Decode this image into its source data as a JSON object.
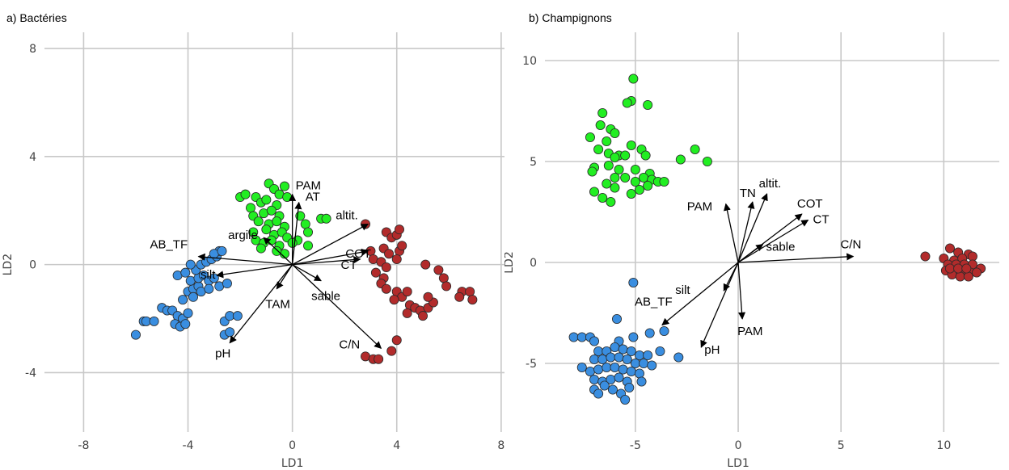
{
  "chart_data": [
    {
      "type": "scatter",
      "title": "a) Bactéries",
      "xlabel": "LD1",
      "ylabel": "LD2",
      "xlim": [
        -9.5,
        8.5
      ],
      "ylim": [
        -6.2,
        8.6
      ],
      "xticks": [
        -8,
        -4,
        0,
        4,
        8
      ],
      "yticks": [
        -4,
        0,
        4,
        8
      ],
      "xtick_labels": [
        "-8",
        "-4",
        "0",
        "4",
        "8"
      ],
      "ytick_labels": [
        "-4",
        "0",
        "4",
        "8"
      ],
      "grid": true,
      "series": [
        {
          "color": "#22ee22",
          "points": [
            [
              -2.0,
              2.5
            ],
            [
              -1.8,
              2.6
            ],
            [
              -1.6,
              2.1
            ],
            [
              -1.4,
              2.5
            ],
            [
              -1.2,
              2.3
            ],
            [
              -0.9,
              3.0
            ],
            [
              -0.7,
              2.8
            ],
            [
              -0.5,
              2.6
            ],
            [
              -0.3,
              2.9
            ],
            [
              -1.0,
              2.4
            ],
            [
              -0.6,
              2.2
            ],
            [
              -0.2,
              2.5
            ],
            [
              -1.5,
              1.8
            ],
            [
              -1.1,
              1.9
            ],
            [
              -0.8,
              2.0
            ],
            [
              -0.5,
              1.8
            ],
            [
              -1.3,
              1.6
            ],
            [
              -0.9,
              1.5
            ],
            [
              -0.6,
              1.6
            ],
            [
              -0.3,
              1.4
            ],
            [
              -1.5,
              1.2
            ],
            [
              -1.0,
              1.3
            ],
            [
              -0.7,
              1.1
            ],
            [
              -0.4,
              1.2
            ],
            [
              -1.4,
              0.9
            ],
            [
              -1.1,
              0.8
            ],
            [
              -0.8,
              0.9
            ],
            [
              -0.5,
              0.7
            ],
            [
              -0.2,
              1.0
            ],
            [
              0.3,
              1.8
            ],
            [
              0.5,
              1.5
            ],
            [
              0.6,
              1.2
            ],
            [
              0.2,
              0.9
            ],
            [
              0.6,
              0.7
            ],
            [
              0.0,
              0.8
            ],
            [
              1.1,
              1.7
            ],
            [
              1.3,
              1.7
            ],
            [
              -1.2,
              0.6
            ],
            [
              -0.3,
              0.4
            ],
            [
              -0.6,
              0.5
            ]
          ]
        },
        {
          "color": "#3a8ee0",
          "points": [
            [
              -6.0,
              -2.6
            ],
            [
              -5.7,
              -2.1
            ],
            [
              -5.6,
              -2.1
            ],
            [
              -5.3,
              -2.1
            ],
            [
              -5.0,
              -1.6
            ],
            [
              -4.8,
              -1.7
            ],
            [
              -4.6,
              -1.7
            ],
            [
              -4.4,
              -1.9
            ],
            [
              -4.2,
              -2.0
            ],
            [
              -4.5,
              -2.2
            ],
            [
              -4.3,
              -2.3
            ],
            [
              -4.1,
              -2.2
            ],
            [
              -4.0,
              -1.8
            ],
            [
              -4.2,
              -1.3
            ],
            [
              -4.0,
              -1.0
            ],
            [
              -3.8,
              -0.9
            ],
            [
              -3.6,
              -0.8
            ],
            [
              -3.9,
              -0.6
            ],
            [
              -3.6,
              -0.5
            ],
            [
              -3.4,
              -0.4
            ],
            [
              -3.2,
              -0.6
            ],
            [
              -3.0,
              -0.5
            ],
            [
              -3.7,
              -0.2
            ],
            [
              -3.5,
              0.0
            ],
            [
              -3.3,
              0.1
            ],
            [
              -3.1,
              0.2
            ],
            [
              -2.9,
              0.3
            ],
            [
              -2.8,
              0.5
            ],
            [
              -3.0,
              0.4
            ],
            [
              -2.7,
              0.5
            ],
            [
              -3.8,
              -1.2
            ],
            [
              -3.5,
              -1.0
            ],
            [
              -3.2,
              -0.9
            ],
            [
              -2.8,
              -0.8
            ],
            [
              -2.5,
              -0.7
            ],
            [
              -4.4,
              -0.4
            ],
            [
              -4.1,
              -0.3
            ],
            [
              -3.9,
              0.0
            ],
            [
              -2.6,
              -2.1
            ],
            [
              -2.4,
              -1.9
            ],
            [
              -2.1,
              -1.9
            ],
            [
              -2.6,
              -2.6
            ],
            [
              -2.4,
              -2.5
            ]
          ]
        },
        {
          "color": "#b22b2b",
          "points": [
            [
              2.8,
              1.5
            ],
            [
              3.6,
              1.2
            ],
            [
              3.8,
              1.0
            ],
            [
              4.0,
              1.1
            ],
            [
              4.1,
              1.3
            ],
            [
              3.5,
              0.6
            ],
            [
              3.7,
              0.4
            ],
            [
              4.1,
              0.5
            ],
            [
              4.2,
              0.7
            ],
            [
              3.0,
              0.5
            ],
            [
              3.1,
              0.2
            ],
            [
              3.4,
              0.1
            ],
            [
              3.6,
              -0.1
            ],
            [
              4.0,
              0.2
            ],
            [
              3.2,
              -0.3
            ],
            [
              3.5,
              -0.5
            ],
            [
              3.4,
              -0.7
            ],
            [
              3.6,
              -0.9
            ],
            [
              4.0,
              -1.0
            ],
            [
              4.2,
              -1.2
            ],
            [
              4.4,
              -1.0
            ],
            [
              3.9,
              -1.3
            ],
            [
              4.5,
              -1.5
            ],
            [
              4.4,
              -1.8
            ],
            [
              4.7,
              -1.6
            ],
            [
              4.9,
              -1.7
            ],
            [
              5.0,
              -1.9
            ],
            [
              5.2,
              -1.6
            ],
            [
              5.4,
              -1.4
            ],
            [
              5.2,
              -1.2
            ],
            [
              5.1,
              0.0
            ],
            [
              5.6,
              -0.2
            ],
            [
              5.8,
              -0.5
            ],
            [
              5.9,
              -0.8
            ],
            [
              6.5,
              -1.0
            ],
            [
              6.8,
              -1.0
            ],
            [
              6.9,
              -1.3
            ],
            [
              6.4,
              -1.2
            ],
            [
              2.8,
              -3.4
            ],
            [
              3.1,
              -3.5
            ],
            [
              3.3,
              -3.5
            ],
            [
              3.8,
              -3.2
            ],
            [
              4.0,
              -2.8
            ]
          ]
        }
      ],
      "vectors": [
        {
          "label": "PAM",
          "x": 0.0,
          "y": 2.6
        },
        {
          "label": "AT",
          "x": 0.25,
          "y": 2.3
        },
        {
          "label": "altit.",
          "x": 2.9,
          "y": 1.5
        },
        {
          "label": "COT",
          "x": 2.9,
          "y": 0.5
        },
        {
          "label": "CT",
          "x": 2.6,
          "y": 0.2
        },
        {
          "label": "sable",
          "x": 1.1,
          "y": -0.6
        },
        {
          "label": "C/N",
          "x": 3.4,
          "y": -3.1
        },
        {
          "label": "argile",
          "x": -1.1,
          "y": 1.0
        },
        {
          "label": "AB_TF",
          "x": -3.6,
          "y": 0.3
        },
        {
          "label": "silt",
          "x": -2.9,
          "y": -0.4
        },
        {
          "label": "TAM",
          "x": -0.6,
          "y": -0.9
        },
        {
          "label": "pH",
          "x": -2.4,
          "y": -2.9
        }
      ]
    },
    {
      "type": "scatter",
      "title": "b) Champignons",
      "xlabel": "LD1",
      "ylabel": "LD2",
      "xlim": [
        -9.4,
        12.7
      ],
      "ylim": [
        -8.4,
        11.4
      ],
      "xticks": [
        -5,
        0,
        5,
        10
      ],
      "yticks": [
        -5,
        0,
        5,
        10
      ],
      "xtick_labels": [
        "-5",
        "0",
        "5",
        "10"
      ],
      "ytick_labels": [
        "-5",
        "0",
        "5",
        "10"
      ],
      "grid": true,
      "series": [
        {
          "color": "#22ee22",
          "points": [
            [
              -5.1,
              9.1
            ],
            [
              -5.2,
              8.0
            ],
            [
              -5.4,
              7.9
            ],
            [
              -4.4,
              7.8
            ],
            [
              -6.6,
              7.4
            ],
            [
              -6.7,
              6.8
            ],
            [
              -6.2,
              6.6
            ],
            [
              -6.0,
              6.4
            ],
            [
              -7.2,
              6.2
            ],
            [
              -6.4,
              6.0
            ],
            [
              -5.2,
              5.8
            ],
            [
              -4.7,
              5.6
            ],
            [
              -6.8,
              5.6
            ],
            [
              -6.3,
              5.4
            ],
            [
              -5.8,
              5.3
            ],
            [
              -5.5,
              5.3
            ],
            [
              -6.0,
              5.2
            ],
            [
              -4.5,
              5.3
            ],
            [
              -2.1,
              5.6
            ],
            [
              -1.5,
              5.0
            ],
            [
              -2.8,
              5.1
            ],
            [
              -7.0,
              4.7
            ],
            [
              -6.3,
              4.8
            ],
            [
              -5.8,
              4.6
            ],
            [
              -5.0,
              4.6
            ],
            [
              -4.3,
              4.4
            ],
            [
              -7.1,
              4.5
            ],
            [
              -6.0,
              4.2
            ],
            [
              -5.5,
              4.2
            ],
            [
              -5.0,
              4.0
            ],
            [
              -4.6,
              4.2
            ],
            [
              -4.2,
              4.1
            ],
            [
              -3.9,
              4.0
            ],
            [
              -3.6,
              4.0
            ],
            [
              -6.4,
              3.9
            ],
            [
              -6.0,
              3.7
            ],
            [
              -7.0,
              3.5
            ],
            [
              -6.6,
              3.2
            ],
            [
              -6.2,
              3.0
            ],
            [
              -4.8,
              3.6
            ],
            [
              -4.4,
              3.8
            ],
            [
              -5.2,
              3.4
            ]
          ]
        },
        {
          "color": "#3a8ee0",
          "points": [
            [
              -5.1,
              -1.0
            ],
            [
              -5.9,
              -2.8
            ],
            [
              -8.0,
              -3.7
            ],
            [
              -7.6,
              -3.7
            ],
            [
              -7.2,
              -3.7
            ],
            [
              -7.0,
              -3.9
            ],
            [
              -5.8,
              -3.9
            ],
            [
              -5.1,
              -3.7
            ],
            [
              -4.3,
              -3.5
            ],
            [
              -3.6,
              -3.4
            ],
            [
              -3.8,
              -4.4
            ],
            [
              -2.9,
              -4.7
            ],
            [
              -6.8,
              -4.4
            ],
            [
              -6.4,
              -4.4
            ],
            [
              -6.0,
              -4.2
            ],
            [
              -5.6,
              -4.3
            ],
            [
              -5.2,
              -4.4
            ],
            [
              -4.8,
              -4.6
            ],
            [
              -4.4,
              -4.6
            ],
            [
              -7.0,
              -4.8
            ],
            [
              -6.6,
              -4.8
            ],
            [
              -6.2,
              -4.7
            ],
            [
              -5.8,
              -4.7
            ],
            [
              -5.4,
              -4.8
            ],
            [
              -5.0,
              -5.0
            ],
            [
              -4.6,
              -5.0
            ],
            [
              -4.2,
              -5.1
            ],
            [
              -7.6,
              -5.2
            ],
            [
              -7.2,
              -5.4
            ],
            [
              -6.8,
              -5.3
            ],
            [
              -6.4,
              -5.2
            ],
            [
              -6.0,
              -5.2
            ],
            [
              -5.6,
              -5.3
            ],
            [
              -5.2,
              -5.4
            ],
            [
              -4.8,
              -5.5
            ],
            [
              -7.0,
              -5.8
            ],
            [
              -6.6,
              -5.9
            ],
            [
              -6.2,
              -5.8
            ],
            [
              -5.8,
              -5.7
            ],
            [
              -5.4,
              -5.9
            ],
            [
              -7.0,
              -6.3
            ],
            [
              -6.5,
              -6.1
            ],
            [
              -6.1,
              -6.3
            ],
            [
              -5.7,
              -6.5
            ],
            [
              -5.5,
              -6.8
            ],
            [
              -6.8,
              -6.5
            ],
            [
              -5.3,
              -6.2
            ],
            [
              -4.7,
              -5.9
            ]
          ]
        },
        {
          "color": "#b22b2b",
          "points": [
            [
              9.1,
              0.3
            ],
            [
              10.3,
              0.7
            ],
            [
              10.7,
              0.5
            ],
            [
              11.2,
              0.4
            ],
            [
              10.0,
              0.2
            ],
            [
              10.5,
              0.1
            ],
            [
              10.9,
              0.2
            ],
            [
              11.4,
              0.3
            ],
            [
              10.2,
              -0.1
            ],
            [
              10.6,
              -0.1
            ],
            [
              11.0,
              -0.1
            ],
            [
              11.4,
              -0.1
            ],
            [
              11.8,
              -0.3
            ],
            [
              10.1,
              -0.4
            ],
            [
              10.5,
              -0.4
            ],
            [
              10.9,
              -0.4
            ],
            [
              11.3,
              -0.5
            ],
            [
              10.4,
              -0.6
            ],
            [
              10.8,
              -0.7
            ],
            [
              11.2,
              -0.7
            ],
            [
              11.6,
              -0.5
            ],
            [
              10.3,
              -0.3
            ],
            [
              10.7,
              -0.3
            ],
            [
              11.1,
              -0.3
            ]
          ]
        }
      ],
      "vectors": [
        {
          "label": "TN",
          "x": 0.7,
          "y": 3.0
        },
        {
          "label": "altit.",
          "x": 1.4,
          "y": 3.4
        },
        {
          "label": "PAM",
          "x": -0.6,
          "y": 2.9
        },
        {
          "label": "COT",
          "x": 3.1,
          "y": 2.4
        },
        {
          "label": "CT",
          "x": 3.4,
          "y": 2.1
        },
        {
          "label": "sable",
          "x": 1.2,
          "y": 0.9
        },
        {
          "label": "C/N",
          "x": 5.6,
          "y": 0.3
        },
        {
          "label": "silt",
          "x": -0.7,
          "y": -1.4
        },
        {
          "label": "AB_TF",
          "x": -3.7,
          "y": -3.1
        },
        {
          "label": "PAM",
          "x": 0.2,
          "y": -2.8
        },
        {
          "label": "pH",
          "x": -1.8,
          "y": -4.2
        }
      ]
    }
  ]
}
